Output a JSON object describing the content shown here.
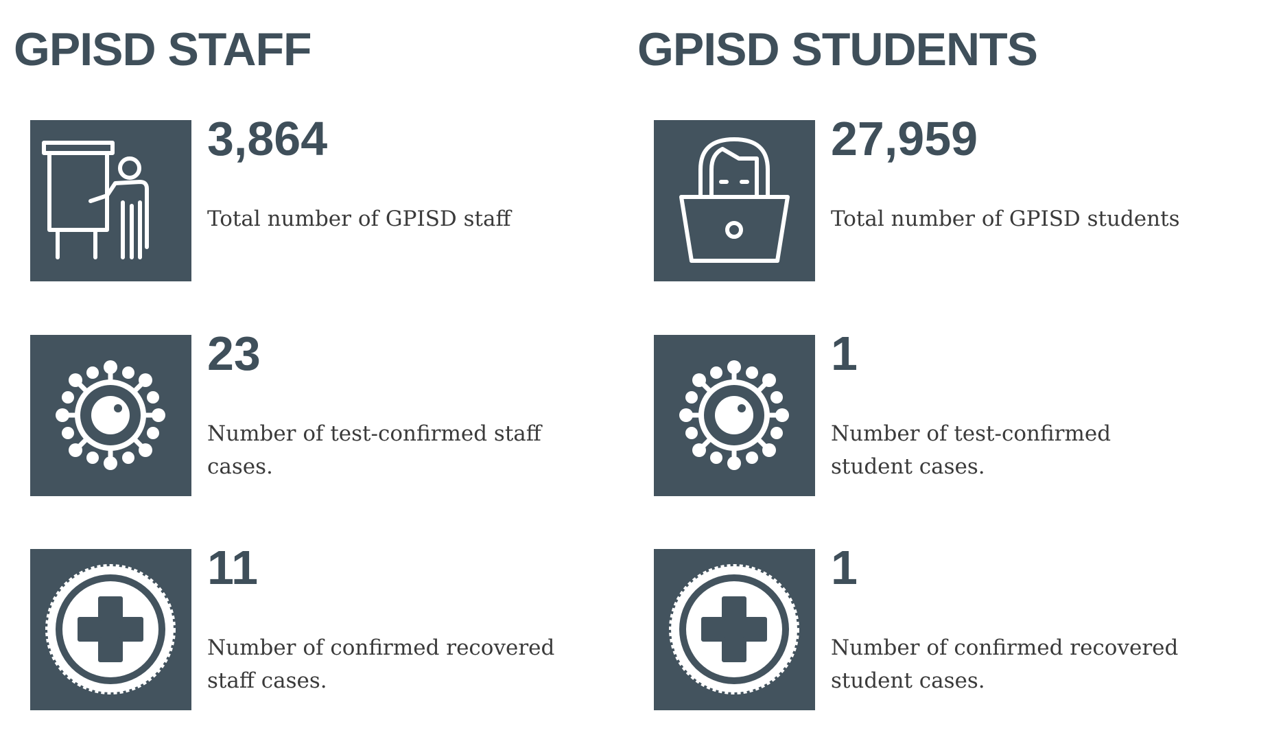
{
  "staff": {
    "title": "GPISD STAFF",
    "stats": [
      {
        "icon": "teacher-presentation-icon",
        "value": "3,864",
        "label": "Total number of GPISD staff"
      },
      {
        "icon": "virus-icon",
        "value": "23",
        "label": "Number of test-confirmed staff cases."
      },
      {
        "icon": "medical-cross-icon",
        "value": "11",
        "label": "Number of confirmed recovered staff cases."
      }
    ]
  },
  "students": {
    "title": "GPISD STUDENTS",
    "stats": [
      {
        "icon": "student-laptop-icon",
        "value": "27,959",
        "label": "Total number of GPISD students"
      },
      {
        "icon": "virus-icon",
        "value": "1",
        "label": "Number of test-confirmed student cases."
      },
      {
        "icon": "medical-cross-icon",
        "value": "1",
        "label": "Number of confirmed recovered student cases."
      }
    ]
  },
  "colors": {
    "tile": "#43535e",
    "heading": "#3f4f5a",
    "body_text": "#3a3a3a"
  }
}
